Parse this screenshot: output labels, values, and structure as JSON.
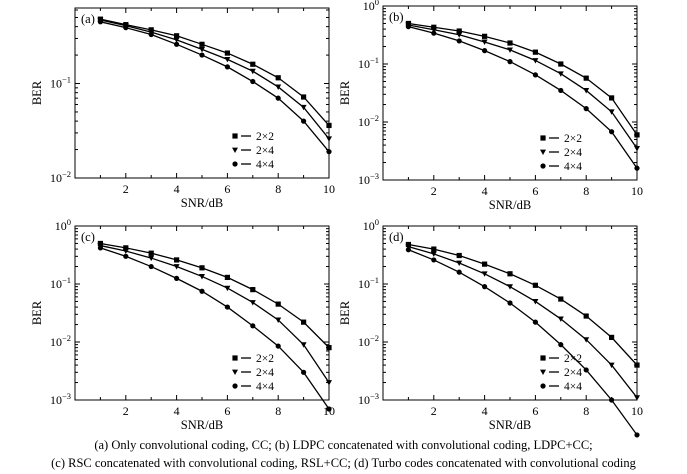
{
  "caption": {
    "line1": "(a)  Only convolutional coding, CC; (b) LDPC concatenated with convolutional coding, LDPC+CC;",
    "line2": "(c) RSC concatenated with convolutional coding, RSL+CC; (d) Turbo codes concatenated with convolutional coding"
  },
  "colors": {
    "line": "#000000",
    "background": "#ffffff"
  },
  "chart_data": [
    {
      "panel_label": "(a)",
      "type": "line",
      "xlabel": "SNR/dB",
      "ylabel": "BER",
      "xlim": [
        0,
        10
      ],
      "ylim": [
        0.01,
        0.63
      ],
      "yscale": "log",
      "xticks": [
        2,
        4,
        6,
        8,
        10
      ],
      "yticks": [
        {
          "value": 0.1,
          "base": "10",
          "exp": "−1"
        },
        {
          "value": 0.01,
          "base": "10",
          "exp": "−2"
        }
      ],
      "grid": false,
      "legend_position": "bottom-right",
      "x": [
        1,
        2,
        3,
        4,
        5,
        6,
        7,
        8,
        9,
        10
      ],
      "series": [
        {
          "name": "2×2",
          "marker": "square",
          "values": [
            0.48,
            0.42,
            0.37,
            0.32,
            0.26,
            0.21,
            0.16,
            0.115,
            0.072,
            0.036
          ]
        },
        {
          "name": "2×4",
          "marker": "triangle-down",
          "values": [
            0.47,
            0.41,
            0.35,
            0.29,
            0.23,
            0.18,
            0.135,
            0.092,
            0.056,
            0.026
          ]
        },
        {
          "name": "4×4",
          "marker": "circle",
          "values": [
            0.45,
            0.39,
            0.33,
            0.26,
            0.2,
            0.15,
            0.105,
            0.07,
            0.04,
            0.019
          ]
        }
      ]
    },
    {
      "panel_label": "(b)",
      "type": "line",
      "xlabel": "SNR/dB",
      "ylabel": "BER",
      "xlim": [
        0,
        10
      ],
      "ylim": [
        0.001,
        1
      ],
      "yscale": "log",
      "xticks": [
        2,
        4,
        6,
        8,
        10
      ],
      "yticks": [
        {
          "value": 1,
          "base": "10",
          "exp": "0"
        },
        {
          "value": 0.1,
          "base": "10",
          "exp": "−1"
        },
        {
          "value": 0.01,
          "base": "10",
          "exp": "−2"
        },
        {
          "value": 0.001,
          "base": "10",
          "exp": "−3"
        }
      ],
      "grid": false,
      "legend_position": "bottom-right",
      "x": [
        1,
        2,
        3,
        4,
        5,
        6,
        7,
        8,
        9,
        10
      ],
      "series": [
        {
          "name": "2×2",
          "marker": "square",
          "values": [
            0.5,
            0.43,
            0.37,
            0.3,
            0.23,
            0.16,
            0.1,
            0.057,
            0.026,
            0.006
          ]
        },
        {
          "name": "2×4",
          "marker": "triangle-down",
          "values": [
            0.47,
            0.39,
            0.32,
            0.24,
            0.175,
            0.115,
            0.068,
            0.035,
            0.015,
            0.0035
          ]
        },
        {
          "name": "4×4",
          "marker": "circle",
          "values": [
            0.44,
            0.34,
            0.25,
            0.17,
            0.11,
            0.065,
            0.035,
            0.017,
            0.0068,
            0.0016
          ]
        }
      ]
    },
    {
      "panel_label": "(c)",
      "type": "line",
      "xlabel": "SNR/dB",
      "ylabel": "BER",
      "xlim": [
        0,
        10
      ],
      "ylim": [
        0.001,
        1
      ],
      "yscale": "log",
      "xticks": [
        2,
        4,
        6,
        8,
        10
      ],
      "yticks": [
        {
          "value": 1,
          "base": "10",
          "exp": "0"
        },
        {
          "value": 0.1,
          "base": "10",
          "exp": "−1"
        },
        {
          "value": 0.01,
          "base": "10",
          "exp": "−2"
        },
        {
          "value": 0.001,
          "base": "10",
          "exp": "−3"
        }
      ],
      "grid": false,
      "legend_position": "bottom-right",
      "x": [
        1,
        2,
        3,
        4,
        5,
        6,
        7,
        8,
        9,
        10
      ],
      "series": [
        {
          "name": "2×2",
          "marker": "square",
          "values": [
            0.5,
            0.42,
            0.34,
            0.26,
            0.19,
            0.13,
            0.08,
            0.045,
            0.022,
            0.008
          ]
        },
        {
          "name": "2×4",
          "marker": "triangle-down",
          "values": [
            0.46,
            0.37,
            0.28,
            0.2,
            0.135,
            0.085,
            0.048,
            0.024,
            0.009,
            0.002
          ]
        },
        {
          "name": "4×4",
          "marker": "circle",
          "values": [
            0.42,
            0.3,
            0.2,
            0.125,
            0.075,
            0.04,
            0.019,
            0.0085,
            0.003,
            0.0007
          ]
        }
      ]
    },
    {
      "panel_label": "(d)",
      "type": "line",
      "xlabel": "SNR/dB",
      "ylabel": "BER",
      "xlim": [
        0,
        10
      ],
      "ylim": [
        0.001,
        1
      ],
      "yscale": "log",
      "xticks": [
        2,
        4,
        6,
        8,
        10
      ],
      "yticks": [
        {
          "value": 1,
          "base": "10",
          "exp": "0"
        },
        {
          "value": 0.1,
          "base": "10",
          "exp": "−1"
        },
        {
          "value": 0.01,
          "base": "10",
          "exp": "−2"
        },
        {
          "value": 0.001,
          "base": "10",
          "exp": "−3"
        }
      ],
      "grid": false,
      "legend_position": "bottom-right",
      "x": [
        1,
        2,
        3,
        4,
        5,
        6,
        7,
        8,
        9,
        10
      ],
      "series": [
        {
          "name": "2×2",
          "marker": "square",
          "values": [
            0.48,
            0.4,
            0.31,
            0.22,
            0.15,
            0.095,
            0.055,
            0.028,
            0.012,
            0.004
          ]
        },
        {
          "name": "2×4",
          "marker": "triangle-down",
          "values": [
            0.44,
            0.33,
            0.23,
            0.15,
            0.09,
            0.05,
            0.025,
            0.011,
            0.004,
            0.0011
          ]
        },
        {
          "name": "4×4",
          "marker": "circle",
          "values": [
            0.39,
            0.26,
            0.16,
            0.09,
            0.047,
            0.022,
            0.009,
            0.0033,
            0.001,
            0.00025
          ]
        }
      ]
    }
  ]
}
